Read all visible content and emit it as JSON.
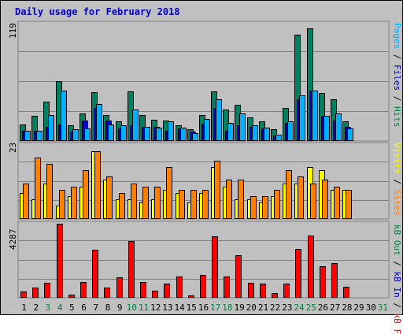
{
  "title": "Daily usage for February 2018",
  "panels": {
    "top": {
      "ymax_label": "119",
      "legend": [
        {
          "text": "Pages",
          "color": "#00b0ff"
        },
        {
          "text": " / ",
          "color": "#000000"
        },
        {
          "text": "Files",
          "color": "#0000cc"
        },
        {
          "text": " / ",
          "color": "#000000"
        },
        {
          "text": "Hits",
          "color": "#008040"
        }
      ]
    },
    "middle": {
      "ymax_label": "23",
      "legend": [
        {
          "text": "Visits",
          "color": "#ffff00"
        },
        {
          "text": " / ",
          "color": "#000000"
        },
        {
          "text": "Sites",
          "color": "#ff8000"
        }
      ]
    },
    "bottom": {
      "ymax_label": "4287",
      "legend": [
        {
          "text": "kB Out",
          "color": "#008040"
        },
        {
          "text": " / ",
          "color": "#000000"
        },
        {
          "text": "kB In",
          "color": "#0000cc"
        },
        {
          "text": " / ",
          "color": "#000000"
        },
        {
          "text": "kB F",
          "color": "#ff0000"
        }
      ]
    }
  },
  "colors": {
    "hits": "#008060",
    "files": "#0000cc",
    "pages": "#00b0ff",
    "visits": "#ffff00",
    "sites": "#ff8000",
    "kbf": "#ff0000",
    "day_normal": "#000000",
    "day_weekend": "#008040"
  },
  "chart_data": [
    {
      "type": "bar",
      "title": "Daily usage for February 2018",
      "ylim": [
        0,
        119
      ],
      "categories": [
        "1",
        "2",
        "3",
        "4",
        "5",
        "6",
        "7",
        "8",
        "9",
        "10",
        "11",
        "12",
        "13",
        "14",
        "15",
        "16",
        "17",
        "18",
        "19",
        "20",
        "21",
        "22",
        "23",
        "24",
        "25",
        "26",
        "27",
        "28",
        "29",
        "30",
        "31"
      ],
      "series": [
        {
          "name": "Hits",
          "values": [
            16,
            25,
            39,
            60,
            15,
            27,
            49,
            26,
            19,
            50,
            26,
            21,
            20,
            15,
            11,
            26,
            50,
            31,
            36,
            23,
            19,
            11,
            33,
            108,
            114,
            48,
            42,
            19,
            0,
            0,
            0
          ]
        },
        {
          "name": "Files",
          "values": [
            10,
            10,
            14,
            16,
            9,
            20,
            33,
            20,
            12,
            15,
            14,
            14,
            10,
            12,
            9,
            17,
            33,
            10,
            15,
            14,
            12,
            5,
            18,
            42,
            51,
            25,
            20,
            14,
            0,
            0,
            0
          ]
        },
        {
          "name": "Pages",
          "values": [
            10,
            10,
            26,
            51,
            11,
            12,
            37,
            16,
            15,
            31,
            14,
            13,
            19,
            13,
            7,
            22,
            42,
            18,
            27,
            15,
            13,
            6,
            19,
            46,
            51,
            25,
            27,
            12,
            0,
            0,
            0
          ]
        }
      ]
    },
    {
      "type": "bar",
      "ylim": [
        0,
        23
      ],
      "categories": [
        "1",
        "2",
        "3",
        "4",
        "5",
        "6",
        "7",
        "8",
        "9",
        "10",
        "11",
        "12",
        "13",
        "14",
        "15",
        "16",
        "17",
        "18",
        "19",
        "20",
        "21",
        "22",
        "23",
        "24",
        "25",
        "26",
        "27",
        "28",
        "29",
        "30",
        "31"
      ],
      "series": [
        {
          "name": "Visits",
          "values": [
            8,
            6,
            11,
            4,
            7,
            10,
            21,
            12,
            6,
            6,
            5,
            6,
            9,
            8,
            5,
            8,
            16,
            10,
            6,
            6,
            5,
            7,
            11,
            11,
            16,
            15,
            9,
            9,
            0,
            0,
            0
          ]
        },
        {
          "name": "Sites",
          "values": [
            11,
            19,
            17,
            9,
            10,
            15,
            21,
            13,
            8,
            11,
            10,
            10,
            16,
            9,
            9,
            9,
            18,
            12,
            12,
            7,
            7,
            9,
            15,
            13,
            11,
            12,
            10,
            9,
            0,
            0,
            0
          ]
        }
      ]
    },
    {
      "type": "bar",
      "ylim": [
        0,
        4287
      ],
      "categories": [
        "1",
        "2",
        "3",
        "4",
        "5",
        "6",
        "7",
        "8",
        "9",
        "10",
        "11",
        "12",
        "13",
        "14",
        "15",
        "16",
        "17",
        "18",
        "19",
        "20",
        "21",
        "22",
        "23",
        "24",
        "25",
        "26",
        "27",
        "28",
        "29",
        "30",
        "31"
      ],
      "series": [
        {
          "name": "kB F",
          "values": [
            340,
            560,
            820,
            4287,
            120,
            880,
            2760,
            560,
            1170,
            3260,
            880,
            380,
            770,
            1210,
            90,
            1300,
            3570,
            1220,
            2430,
            840,
            780,
            210,
            770,
            2790,
            3610,
            1820,
            1960,
            580,
            0,
            0,
            0
          ]
        }
      ]
    }
  ]
}
